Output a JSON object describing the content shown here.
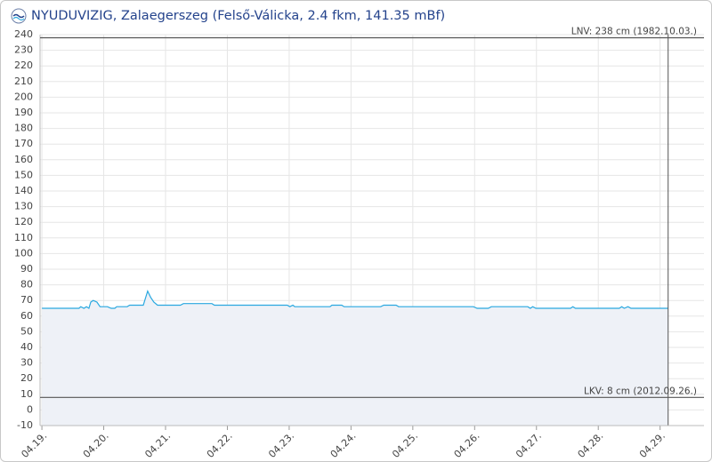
{
  "chart_data": {
    "type": "line",
    "title": "NYUDUVIZIG, Zalaegerszeg (Felső-Válicka, 2.4 fkm, 141.35 mBf)",
    "xlim": [
      -0.03,
      10.71
    ],
    "ylim": [
      -10,
      240
    ],
    "yticks": [
      -10,
      0,
      10,
      20,
      30,
      40,
      50,
      60,
      70,
      80,
      90,
      100,
      110,
      120,
      130,
      140,
      150,
      160,
      170,
      180,
      190,
      200,
      210,
      220,
      230,
      240
    ],
    "xticks": [
      {
        "value": 0,
        "label": "04.19."
      },
      {
        "value": 1,
        "label": "04.20."
      },
      {
        "value": 2,
        "label": "04.21."
      },
      {
        "value": 3,
        "label": "04.22."
      },
      {
        "value": 4,
        "label": "04.23."
      },
      {
        "value": 5,
        "label": "04.24."
      },
      {
        "value": 6,
        "label": "04.25."
      },
      {
        "value": 7,
        "label": "04.26."
      },
      {
        "value": 8,
        "label": "04.27."
      },
      {
        "value": 9,
        "label": "04.28."
      },
      {
        "value": 10,
        "label": "04.29."
      }
    ],
    "grid": true,
    "area_color": "#eef1f7",
    "series": [
      {
        "color": "#29a8e0",
        "x": [
          0,
          0.6,
          0.63,
          0.68,
          0.72,
          0.76,
          0.79,
          0.83,
          0.89,
          0.94,
          1.06,
          1.12,
          1.18,
          1.21,
          1.38,
          1.42,
          1.64,
          1.71,
          1.76,
          1.81,
          1.87,
          2.24,
          2.29,
          2.75,
          2.79,
          3.97,
          4.01,
          4.06,
          4.09,
          4.66,
          4.69,
          4.85,
          4.89,
          5.48,
          5.53,
          5.73,
          5.77,
          6.98,
          7.04,
          7.22,
          7.27,
          7.86,
          7.9,
          7.94,
          7.99,
          8.55,
          8.59,
          8.63,
          9.34,
          9.38,
          9.42,
          9.48,
          9.53,
          10.13
        ],
        "values": [
          65,
          65,
          66,
          65,
          66,
          65,
          69,
          70,
          69,
          66,
          66,
          65,
          65,
          66,
          66,
          67,
          67,
          76,
          72,
          69,
          67,
          67,
          68,
          68,
          67,
          67,
          66,
          67,
          66,
          66,
          67,
          67,
          66,
          66,
          67,
          67,
          66,
          66,
          65,
          65,
          66,
          66,
          65,
          66,
          65,
          65,
          66,
          65,
          65,
          66,
          65,
          66,
          65,
          65
        ]
      }
    ],
    "reference_lines": [
      {
        "value": 238,
        "label": "LNV: 238 cm (1982.10.03.)"
      },
      {
        "value": 8,
        "label": "LKV: 8 cm (2012.09.26.)"
      }
    ]
  }
}
